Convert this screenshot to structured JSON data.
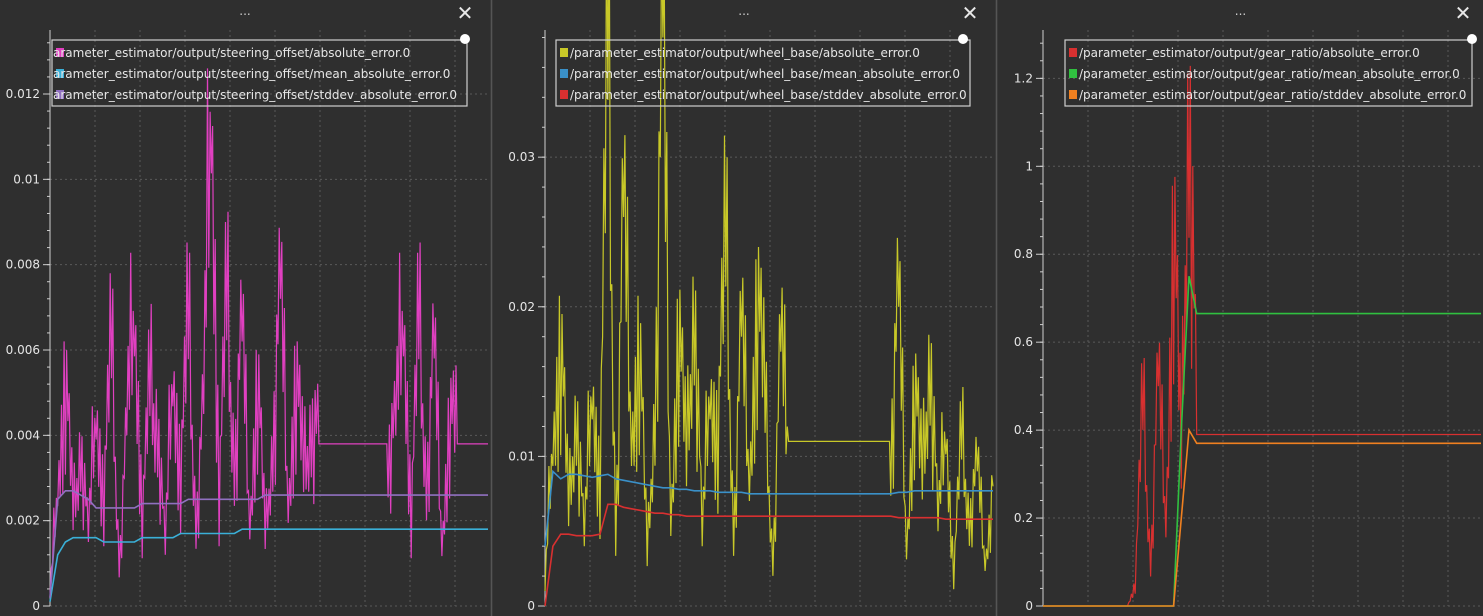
{
  "panels": [
    {
      "title": "...",
      "close_label": "✕"
    },
    {
      "title": "...",
      "close_label": "✕"
    },
    {
      "title": "...",
      "close_label": "✕"
    }
  ],
  "chart_data": [
    {
      "type": "line",
      "title": "",
      "xlabel": "",
      "ylabel": "",
      "ylim": [
        0,
        0.0135
      ],
      "yticks": [
        "0",
        "0.002",
        "0.004",
        "0.006",
        "0.008",
        "0.01",
        "0.012"
      ],
      "ytick_values": [
        0,
        0.002,
        0.004,
        0.006,
        0.008,
        0.01,
        0.012
      ],
      "grid": true,
      "legend_position": "top",
      "series": [
        {
          "name": "arameter_estimator/output/steering_offset/absolute_error.0",
          "color": "#e040c0",
          "style": "noisy",
          "values": [
            0.0002,
            0.003,
            0.0055,
            0.002,
            0.004,
            0.0015,
            0.005,
            0.0025,
            0.006,
            0.001,
            0.004,
            0.0075,
            0.002,
            0.005,
            0.0045,
            0.0012,
            0.006,
            0.003,
            0.0065,
            0.002,
            0.0045,
            0.013,
            0.0025,
            0.007,
            0.0035,
            0.0062,
            0.002,
            0.0055,
            0.0015,
            0.004,
            0.0072,
            0.0025,
            0.0055,
            0.003,
            0.0045,
            0.0038,
            0.0038,
            0.0038,
            0.0038,
            0.0038,
            0.0038,
            0.0038,
            0.0038,
            0.0038,
            0.0038,
            0.004,
            0.0075,
            0.002,
            0.0065,
            0.003,
            0.0058,
            0.0015,
            0.0045,
            0.0038,
            0.0038,
            0.0038,
            0.0038,
            0.0038
          ]
        },
        {
          "name": "arameter_estimator/output/steering_offset/mean_absolute_error.0",
          "color": "#3ab0d8",
          "style": "smooth",
          "values": [
            0.0001,
            0.0012,
            0.0015,
            0.0016,
            0.0016,
            0.0016,
            0.0016,
            0.0015,
            0.0015,
            0.0015,
            0.0015,
            0.0015,
            0.0016,
            0.0016,
            0.0016,
            0.0016,
            0.0016,
            0.0017,
            0.0017,
            0.0017,
            0.0017,
            0.0017,
            0.0017,
            0.0017,
            0.0017,
            0.0018,
            0.0018,
            0.0018,
            0.0018,
            0.0018,
            0.0018,
            0.0018,
            0.0018,
            0.0018,
            0.0018,
            0.0018,
            0.0018,
            0.0018,
            0.0018,
            0.0018,
            0.0018,
            0.0018,
            0.0018,
            0.0018,
            0.0018,
            0.0018,
            0.0018,
            0.0018,
            0.0018,
            0.0018,
            0.0018,
            0.0018,
            0.0018,
            0.0018,
            0.0018,
            0.0018,
            0.0018,
            0.0018
          ]
        },
        {
          "name": "arameter_estimator/output/steering_offset/stddev_absolute_error.0",
          "color": "#9070c0",
          "style": "smooth",
          "values": [
            0.0002,
            0.0025,
            0.0027,
            0.0027,
            0.0026,
            0.0025,
            0.0023,
            0.0023,
            0.0023,
            0.0023,
            0.0023,
            0.0023,
            0.0024,
            0.0024,
            0.0024,
            0.0024,
            0.0024,
            0.0024,
            0.0025,
            0.0025,
            0.0025,
            0.0025,
            0.0025,
            0.0025,
            0.0025,
            0.0025,
            0.0025,
            0.0025,
            0.0026,
            0.0026,
            0.0026,
            0.0026,
            0.0026,
            0.0026,
            0.0026,
            0.0026,
            0.0026,
            0.0026,
            0.0026,
            0.0026,
            0.0026,
            0.0026,
            0.0026,
            0.0026,
            0.0026,
            0.0026,
            0.0026,
            0.0026,
            0.0026,
            0.0026,
            0.0026,
            0.0026,
            0.0026,
            0.0026,
            0.0026,
            0.0026,
            0.0026,
            0.0026
          ]
        }
      ]
    },
    {
      "type": "line",
      "title": "",
      "xlabel": "",
      "ylabel": "",
      "ylim": [
        0,
        0.0385
      ],
      "yticks": [
        "0",
        "0.01",
        "0.02",
        "0.03"
      ],
      "ytick_values": [
        0,
        0.01,
        0.02,
        0.03
      ],
      "grid": true,
      "legend_position": "top",
      "series": [
        {
          "name": "/parameter_estimator/output/wheel_base/absolute_error.0",
          "color": "#c8c828",
          "style": "noisy",
          "values": [
            0.001,
            0.012,
            0.018,
            0.006,
            0.014,
            0.004,
            0.016,
            0.008,
            0.038,
            0.005,
            0.026,
            0.012,
            0.018,
            0.003,
            0.014,
            0.038,
            0.006,
            0.019,
            0.009,
            0.022,
            0.004,
            0.016,
            0.011,
            0.024,
            0.005,
            0.018,
            0.009,
            0.021,
            0.013,
            0.003,
            0.017,
            0.011,
            0.011,
            0.011,
            0.011,
            0.011,
            0.011,
            0.011,
            0.011,
            0.011,
            0.011,
            0.011,
            0.011,
            0.011,
            0.011,
            0.02,
            0.004,
            0.015,
            0.008,
            0.018,
            0.005,
            0.013,
            0.002,
            0.011,
            0.006,
            0.009,
            0.003,
            0.008
          ]
        },
        {
          "name": "/parameter_estimator/output/wheel_base/mean_absolute_error.0",
          "color": "#3a90c8",
          "style": "smooth",
          "values": [
            0.004,
            0.009,
            0.0085,
            0.0088,
            0.0088,
            0.0087,
            0.0086,
            0.0087,
            0.0088,
            0.0085,
            0.0084,
            0.0083,
            0.0082,
            0.0081,
            0.008,
            0.0079,
            0.0079,
            0.0078,
            0.0078,
            0.0077,
            0.0077,
            0.0077,
            0.0076,
            0.0076,
            0.0076,
            0.0076,
            0.0075,
            0.0075,
            0.0075,
            0.0075,
            0.0075,
            0.0075,
            0.0075,
            0.0075,
            0.0075,
            0.0075,
            0.0075,
            0.0075,
            0.0075,
            0.0075,
            0.0075,
            0.0075,
            0.0075,
            0.0075,
            0.0075,
            0.0076,
            0.0076,
            0.0077,
            0.0077,
            0.0077,
            0.0077,
            0.0077,
            0.0077,
            0.0077,
            0.0077,
            0.0077,
            0.0077,
            0.0077
          ]
        },
        {
          "name": "/parameter_estimator/output/wheel_base/stddev_absolute_error.0",
          "color": "#d83030",
          "style": "smooth",
          "values": [
            0.0,
            0.004,
            0.0048,
            0.0048,
            0.0047,
            0.0047,
            0.0047,
            0.0048,
            0.0068,
            0.0068,
            0.0066,
            0.0065,
            0.0064,
            0.0063,
            0.0062,
            0.0062,
            0.0061,
            0.0061,
            0.006,
            0.006,
            0.006,
            0.006,
            0.006,
            0.006,
            0.006,
            0.006,
            0.006,
            0.006,
            0.006,
            0.006,
            0.006,
            0.006,
            0.006,
            0.006,
            0.006,
            0.006,
            0.006,
            0.006,
            0.006,
            0.006,
            0.006,
            0.006,
            0.006,
            0.006,
            0.006,
            0.0059,
            0.0059,
            0.0059,
            0.0059,
            0.0059,
            0.0059,
            0.0058,
            0.0058,
            0.0058,
            0.0058,
            0.0058,
            0.0058,
            0.0058
          ]
        }
      ]
    },
    {
      "type": "line",
      "title": "",
      "xlabel": "",
      "ylabel": "",
      "ylim": [
        0,
        1.31
      ],
      "yticks": [
        "0",
        "0.2",
        "0.4",
        "0.6",
        "0.8",
        "1",
        "1.2"
      ],
      "ytick_values": [
        0,
        0.2,
        0.4,
        0.6,
        0.8,
        1.0,
        1.2
      ],
      "grid": true,
      "legend_position": "top",
      "series": [
        {
          "name": "/parameter_estimator/output/gear_ratio/absolute_error.0",
          "color": "#d83030",
          "style": "spike",
          "values": [
            0.0,
            0.0,
            0.0,
            0.0,
            0.0,
            0.0,
            0.0,
            0.0,
            0.0,
            0.0,
            0.0,
            0.0,
            0.05,
            0.45,
            0.1,
            0.5,
            0.2,
            0.9,
            0.3,
            1.25,
            0.39,
            0.39,
            0.39,
            0.39,
            0.39,
            0.39,
            0.39,
            0.39,
            0.39,
            0.39,
            0.39,
            0.39,
            0.39,
            0.39,
            0.39,
            0.39,
            0.39,
            0.39,
            0.39,
            0.39,
            0.39,
            0.39,
            0.39,
            0.39,
            0.39,
            0.39,
            0.39,
            0.39,
            0.39,
            0.39,
            0.39,
            0.39,
            0.39,
            0.39,
            0.39,
            0.39,
            0.39,
            0.39
          ]
        },
        {
          "name": "/parameter_estimator/output/gear_ratio/mean_absolute_error.0",
          "color": "#30c040",
          "style": "step",
          "values": [
            0.0,
            0.0,
            0.0,
            0.0,
            0.0,
            0.0,
            0.0,
            0.0,
            0.0,
            0.0,
            0.0,
            0.0,
            0.0,
            0.0,
            0.0,
            0.0,
            0.0,
            0.0,
            0.4,
            0.75,
            0.665,
            0.665,
            0.665,
            0.665,
            0.665,
            0.665,
            0.665,
            0.665,
            0.665,
            0.665,
            0.665,
            0.665,
            0.665,
            0.665,
            0.665,
            0.665,
            0.665,
            0.665,
            0.665,
            0.665,
            0.665,
            0.665,
            0.665,
            0.665,
            0.665,
            0.665,
            0.665,
            0.665,
            0.665,
            0.665,
            0.665,
            0.665,
            0.665,
            0.665,
            0.665,
            0.665,
            0.665,
            0.665
          ]
        },
        {
          "name": "/parameter_estimator/output/gear_ratio/stddev_absolute_error.0",
          "color": "#f08020",
          "style": "step",
          "values": [
            0.0,
            0.0,
            0.0,
            0.0,
            0.0,
            0.0,
            0.0,
            0.0,
            0.0,
            0.0,
            0.0,
            0.0,
            0.0,
            0.0,
            0.0,
            0.0,
            0.0,
            0.0,
            0.2,
            0.4,
            0.37,
            0.37,
            0.37,
            0.37,
            0.37,
            0.37,
            0.37,
            0.37,
            0.37,
            0.37,
            0.37,
            0.37,
            0.37,
            0.37,
            0.37,
            0.37,
            0.37,
            0.37,
            0.37,
            0.37,
            0.37,
            0.37,
            0.37,
            0.37,
            0.37,
            0.37,
            0.37,
            0.37,
            0.37,
            0.37,
            0.37,
            0.37,
            0.37,
            0.37,
            0.37,
            0.37,
            0.37,
            0.37
          ]
        }
      ]
    }
  ],
  "colors": {
    "background": "#2f2f2f",
    "grid": "#5a5a5a",
    "axis": "#cfcfcf",
    "legend_border": "#cfcfcf"
  }
}
